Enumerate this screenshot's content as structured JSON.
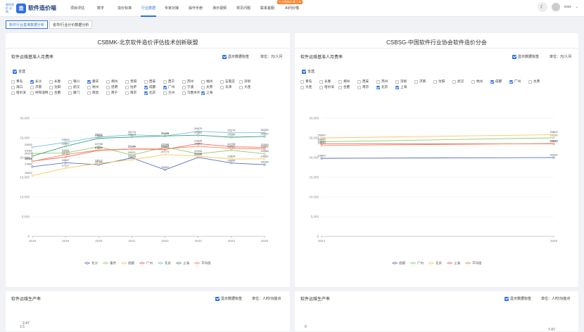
{
  "header": {
    "logo_mark": "造",
    "logo_sub": "软件造价\n诊所",
    "logo_text": "软件造价喵",
    "nav": [
      "项目评估",
      "数字",
      "造价标准",
      "行业数据",
      "专家对接",
      "操作手册",
      "演示视频",
      "常见问题",
      "联系客服",
      "AI问价喵"
    ],
    "nav_badge": "行业智能价格工具",
    "username": "xxxx"
  },
  "subtabs": [
    "软件行业基准数据分析",
    "省市/行业计价数据分析"
  ],
  "left_panel": {
    "title": "CSBMK-北京软件造价评估技术创新联盟",
    "section1": {
      "title": "软件运维基准人月费率",
      "show_labels": "显示数据标签",
      "unit": "单位：元/人月"
    },
    "select_all": "全选",
    "cities": [
      {
        "name": "青岛",
        "on": false
      },
      {
        "name": "长沙",
        "on": true
      },
      {
        "name": "长春",
        "on": false
      },
      {
        "name": "银川",
        "on": false
      },
      {
        "name": "重庆",
        "on": true
      },
      {
        "name": "郑州",
        "on": false
      },
      {
        "name": "贵阳",
        "on": false
      },
      {
        "name": "西安",
        "on": false
      },
      {
        "name": "西宁",
        "on": false
      },
      {
        "name": "苏州",
        "on": false
      },
      {
        "name": "福州",
        "on": false
      },
      {
        "name": "石家庄",
        "on": false
      },
      {
        "name": "深圳",
        "on": false
      },
      {
        "name": "海口",
        "on": false
      },
      {
        "name": "济南",
        "on": false
      },
      {
        "name": "沈阳",
        "on": false
      },
      {
        "name": "武汉",
        "on": false
      },
      {
        "name": "杭州",
        "on": false
      },
      {
        "name": "昆明",
        "on": false
      },
      {
        "name": "拉萨",
        "on": false
      },
      {
        "name": "成都",
        "on": true
      },
      {
        "name": "广州",
        "on": true
      },
      {
        "name": "宁波",
        "on": false
      },
      {
        "name": "太原",
        "on": false
      },
      {
        "name": "天津",
        "on": false
      },
      {
        "name": "大连",
        "on": false
      },
      {
        "name": "哈尔滨",
        "on": false
      },
      {
        "name": "呼和浩特",
        "on": false
      },
      {
        "name": "合肥",
        "on": false
      },
      {
        "name": "厦门",
        "on": false
      },
      {
        "name": "南昌",
        "on": false
      },
      {
        "name": "南宁",
        "on": false
      },
      {
        "name": "南京",
        "on": false
      },
      {
        "name": "北京",
        "on": true
      },
      {
        "name": "兰州",
        "on": false
      },
      {
        "name": "乌鲁木齐",
        "on": false
      },
      {
        "name": "上海",
        "on": true
      }
    ],
    "section2": {
      "title": "软件运维生产率",
      "show_labels": "显示数据标签",
      "unit": "单位：人时/功能点",
      "first_label": "2.47",
      "y_tick": "2.5"
    }
  },
  "right_panel": {
    "title": "CSBSG-中国软件行业协会软件造价分会",
    "section1": {
      "title": "软件运维基准人月费率",
      "show_labels": "显示数据标签",
      "unit": "单位：元/人月"
    },
    "select_all": "全选",
    "cities": [
      {
        "name": "青岛",
        "on": false
      },
      {
        "name": "长春",
        "on": false
      },
      {
        "name": "郑州",
        "on": false
      },
      {
        "name": "西安",
        "on": false
      },
      {
        "name": "苏州",
        "on": false
      },
      {
        "name": "深圳",
        "on": false
      },
      {
        "name": "济南",
        "on": false
      },
      {
        "name": "沈阳",
        "on": false
      },
      {
        "name": "武汉",
        "on": false
      },
      {
        "name": "杭州",
        "on": false
      },
      {
        "name": "成都",
        "on": true
      },
      {
        "name": "广州",
        "on": true
      },
      {
        "name": "太原",
        "on": false
      },
      {
        "name": "大连",
        "on": false
      },
      {
        "name": "哈尔滨",
        "on": false
      },
      {
        "name": "合肥",
        "on": false
      },
      {
        "name": "南京",
        "on": false
      },
      {
        "name": "北京",
        "on": true
      },
      {
        "name": "上海",
        "on": true
      }
    ],
    "section2": {
      "title": "软件运维生产率",
      "show_labels": "显示数据标签",
      "unit": "单位：人时/功能点",
      "first_label": "7.47",
      "y_tick": "8"
    }
  },
  "colors": {
    "accent": "#2f6fe4",
    "changsha": "#5470c6",
    "chongqing": "#91cc75",
    "chengdu": "#fac858",
    "guangzhou": "#ee6666",
    "beijing": "#73c0de",
    "shanghai": "#3ba272",
    "avg": "#fc8452"
  },
  "chart_data": [
    {
      "type": "line",
      "title": "软件运维基准人月费率",
      "x": [
        "2018",
        "2019",
        "2020",
        "2021",
        "2022",
        "2023",
        "2024",
        "2025"
      ],
      "ylim": [
        0,
        30000
      ],
      "yticks": [
        "0",
        "5,000",
        "10,000",
        "15,000",
        "20,000",
        "25,000",
        "30,000"
      ],
      "legend_position": "bottom",
      "series": [
        {
          "name": "长沙",
          "values": [
            17682,
            18687,
            18186,
            19910,
            16891,
            20049,
            18605,
            18198
          ]
        },
        {
          "name": "重庆",
          "values": [
            21062,
            21151,
            22788,
            20621,
            22648,
            20942,
            21851,
            20968
          ]
        },
        {
          "name": "成都",
          "values": [
            15412,
            17317,
            18527,
            19449,
            20774,
            20342,
            19624,
            19652
          ]
        },
        {
          "name": "广州",
          "values": [
            19068,
            20138,
            21817,
            22141,
            22059,
            23535,
            22739,
            22599
          ]
        },
        {
          "name": "北京",
          "values": [
            22632,
            23853,
            25201,
            25776,
            25476,
            26670,
            26279,
            26335
          ]
        },
        {
          "name": "上海",
          "values": [
            20373,
            22867,
            24888,
            25218,
            25488,
            25682,
            25180,
            25362
          ]
        },
        {
          "name": "平均值",
          "values": [
            19036,
            20769,
            21901,
            22186,
            22223,
            22861,
            22327,
            22186
          ]
        }
      ]
    },
    {
      "type": "line",
      "title": "软件运维基准人月费率",
      "x": [
        "2024",
        "2025"
      ],
      "ylim": [
        0,
        30000
      ],
      "yticks": [
        "0",
        "5,000",
        "10,000",
        "15,000",
        "20,000",
        "25,000",
        "30,000"
      ],
      "legend_position": "bottom",
      "series": [
        {
          "name": "成都",
          "values": [
            19800,
            20000
          ]
        },
        {
          "name": "广州",
          "values": [
            24000,
            25000
          ]
        },
        {
          "name": "北京",
          "values": [
            25000,
            25800
          ]
        },
        {
          "name": "上海",
          "values": [
            23500,
            23500
          ]
        },
        {
          "name": "平均值",
          "values": [
            23075,
            23575
          ]
        }
      ]
    }
  ]
}
